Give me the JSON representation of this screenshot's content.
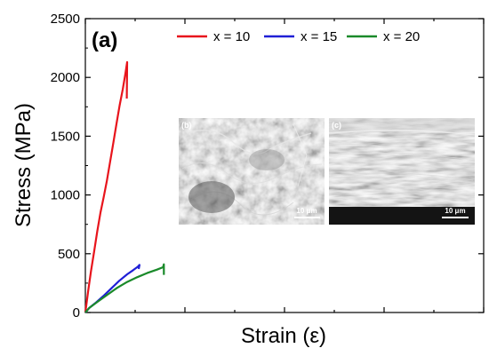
{
  "chart_data": {
    "type": "line",
    "panel_label": "(a)",
    "xlabel": "Strain (ε)",
    "ylabel": "Stress (MPa)",
    "ylim": [
      0,
      2500
    ],
    "yticks": [
      0,
      500,
      1000,
      1500,
      2000,
      2500
    ],
    "ytick_labels": [
      "0",
      "500",
      "1000",
      "1500",
      "2000",
      "2500"
    ],
    "xlim": [
      0,
      1
    ],
    "x_tick_labels_shown": false,
    "grid": false,
    "legend_position": "top-right",
    "series": [
      {
        "name": "x = 10",
        "color": "#e8141c",
        "points": [
          [
            0.0,
            0
          ],
          [
            0.007,
            180
          ],
          [
            0.014,
            350
          ],
          [
            0.022,
            520
          ],
          [
            0.03,
            690
          ],
          [
            0.038,
            850
          ],
          [
            0.046,
            980
          ],
          [
            0.054,
            1120
          ],
          [
            0.062,
            1280
          ],
          [
            0.07,
            1440
          ],
          [
            0.078,
            1600
          ],
          [
            0.086,
            1760
          ],
          [
            0.094,
            1900
          ],
          [
            0.101,
            2040
          ],
          [
            0.105,
            2130
          ],
          [
            0.104,
            1820
          ]
        ]
      },
      {
        "name": "x = 15",
        "color": "#1f1fd6",
        "points": [
          [
            0.0,
            0
          ],
          [
            0.01,
            40
          ],
          [
            0.025,
            80
          ],
          [
            0.045,
            140
          ],
          [
            0.065,
            205
          ],
          [
            0.085,
            270
          ],
          [
            0.105,
            325
          ],
          [
            0.12,
            360
          ],
          [
            0.132,
            390
          ],
          [
            0.136,
            405
          ],
          [
            0.134,
            370
          ]
        ]
      },
      {
        "name": "x = 20",
        "color": "#1a8a2a",
        "points": [
          [
            0.0,
            0
          ],
          [
            0.01,
            40
          ],
          [
            0.03,
            90
          ],
          [
            0.055,
            150
          ],
          [
            0.08,
            210
          ],
          [
            0.105,
            260
          ],
          [
            0.13,
            300
          ],
          [
            0.155,
            335
          ],
          [
            0.18,
            365
          ],
          [
            0.195,
            385
          ],
          [
            0.197,
            410
          ],
          [
            0.197,
            320
          ]
        ]
      }
    ]
  },
  "insets": [
    {
      "label": "(b)",
      "scale_bar": "10 μm"
    },
    {
      "label": "(c)",
      "scale_bar": "10 μm"
    }
  ]
}
